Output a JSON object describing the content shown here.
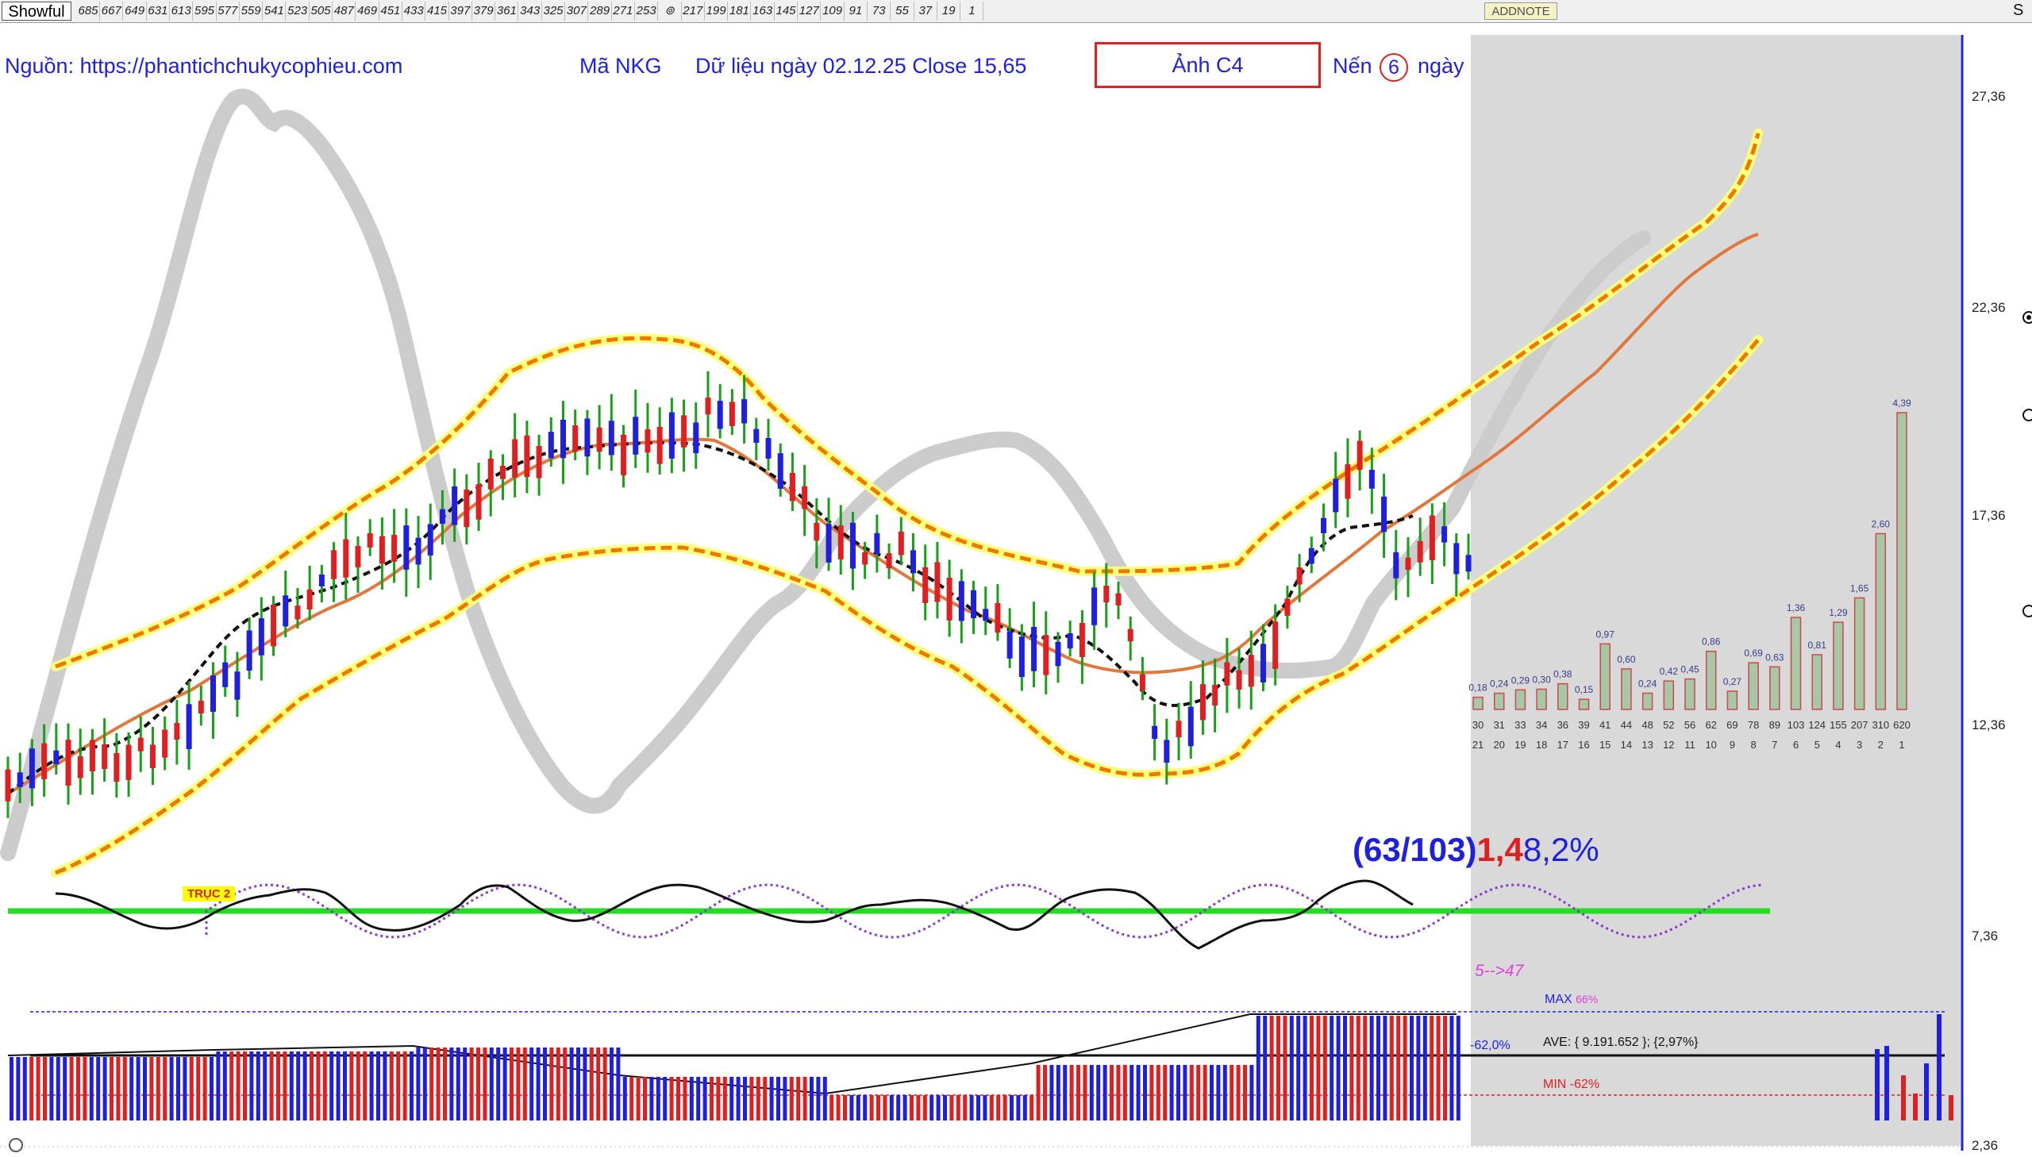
{
  "toolbar": {
    "app_button": "Showful",
    "ruler_numbers": [
      "685",
      "667",
      "649",
      "631",
      "613",
      "595",
      "577",
      "559",
      "541",
      "523",
      "505",
      "487",
      "469",
      "451",
      "433",
      "415",
      "397",
      "379",
      "361",
      "343",
      "325",
      "307",
      "289",
      "271",
      "253",
      "",
      "217",
      "199",
      "181",
      "163",
      "145",
      "127",
      "109",
      "91",
      "73",
      "55",
      "37",
      "19",
      "1"
    ],
    "addnote_label": "ADDNOTE",
    "corner_label": "S"
  },
  "header": {
    "source": "Nguồn: https://phantichchukycophieu.com",
    "ticker": "Mã NKG",
    "data_date": "Dữ liệu ngày 02.12.25 Close 15,65",
    "photo_label": "Ảnh C4",
    "candle_prefix": "Nến",
    "candle_count": "6",
    "candle_suffix": "ngày"
  },
  "price_axis": {
    "ticks": [
      "27,36",
      "22,36",
      "17,36",
      "12,36",
      "7,36",
      "2,36"
    ]
  },
  "cycle_panel": {
    "ratio_part1": "(63/103)",
    "ratio_part2": "1,4",
    "ratio_part3": "8,2%",
    "axis_label": "TRỤC 2",
    "cycle_range": "5-->47"
  },
  "volume_panel": {
    "max_label": "MAX",
    "max_value": "66%",
    "ave_label": "AVE:  { 9.191.652 }; {2,97%}",
    "min_label": "MIN",
    "min_value": "-62%",
    "change_label": "-62,0%"
  },
  "colors": {
    "up": "#1f1fe0",
    "down": "#e02020",
    "wick": "#18a018",
    "band": "#f07800",
    "band_glow": "#ffff80",
    "mid_line": "#e0783c",
    "gray_cycle": "#cccccc",
    "forecast_bg": "#d9d9d9"
  },
  "chart_data": {
    "type": "bar",
    "title": "",
    "categories": [
      "30/21",
      "31/20",
      "33/19",
      "34/18",
      "36/17",
      "39/16",
      "41/15",
      "44/14",
      "48/13",
      "52/12",
      "56/11",
      "62/10",
      "69/9",
      "78/8",
      "89/7",
      "103/6",
      "124/5",
      "155/4",
      "207/3",
      "310/2",
      "620/1"
    ],
    "top_labels": [
      "30",
      "31",
      "33",
      "34",
      "36",
      "39",
      "41",
      "44",
      "48",
      "52",
      "56",
      "62",
      "69",
      "78",
      "89",
      "103",
      "124",
      "155",
      "207",
      "310",
      "620"
    ],
    "bottom_labels": [
      "21",
      "20",
      "19",
      "18",
      "17",
      "16",
      "15",
      "14",
      "13",
      "12",
      "11",
      "10",
      "9",
      "8",
      "7",
      "6",
      "5",
      "4",
      "3",
      "2",
      "1"
    ],
    "values": [
      0.18,
      0.24,
      0.29,
      0.3,
      0.38,
      0.15,
      0.97,
      0.6,
      0.24,
      0.42,
      0.45,
      0.86,
      0.27,
      0.69,
      0.63,
      1.36,
      0.81,
      1.29,
      1.65,
      2.6,
      4.39
    ],
    "value_labels": [
      "0,18",
      "0,24",
      "0,29",
      "0,30",
      "0,38",
      "0,15",
      "0,97",
      "0,60",
      "0,24",
      "0,42",
      "0,45",
      "0,86",
      "0,27",
      "0,69",
      "0,63",
      "1,36",
      "0,81",
      "1,29",
      "1,65",
      "2,60",
      "4,39"
    ]
  }
}
